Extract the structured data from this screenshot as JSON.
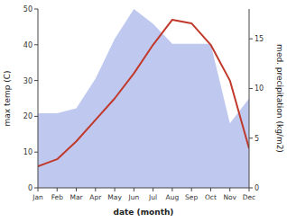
{
  "chart_data": {
    "type": "line",
    "x_label": "date (month)",
    "y_label": "max temp (C)",
    "y2_label": "med. precipitation (kg/m2)",
    "categories": [
      "Jan",
      "Feb",
      "Mar",
      "Apr",
      "May",
      "Jun",
      "Jul",
      "Aug",
      "Sep",
      "Oct",
      "Nov",
      "Dec"
    ],
    "series": [
      {
        "type": "area",
        "axis": "y2",
        "color": "#bfc9f0",
        "values": [
          7.5,
          7.5,
          8,
          11,
          15,
          18,
          16.5,
          14.5,
          14.5,
          14.5,
          6.5,
          9
        ]
      },
      {
        "type": "line",
        "color": "#c0392b",
        "values": [
          6,
          8,
          13,
          19,
          25,
          32,
          40,
          47,
          46,
          40,
          30,
          11
        ]
      }
    ],
    "ylim": [
      0,
      50
    ],
    "yticks": [
      0,
      10,
      20,
      30,
      40,
      50
    ],
    "y2lim": [
      0,
      18
    ],
    "y2ticks": [
      0,
      5,
      10,
      15
    ],
    "grid": false
  }
}
